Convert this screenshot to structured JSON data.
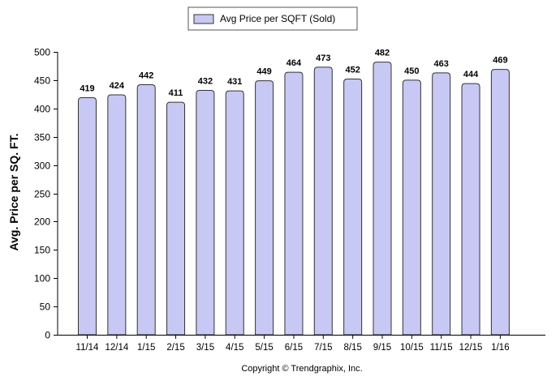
{
  "chart_data": {
    "type": "bar",
    "categories": [
      "11/14",
      "12/14",
      "1/15",
      "2/15",
      "3/15",
      "4/15",
      "5/15",
      "6/15",
      "7/15",
      "8/15",
      "9/15",
      "10/15",
      "11/15",
      "12/15",
      "1/16"
    ],
    "series": [
      {
        "name": "Avg Price per SQFT (Sold)",
        "values": [
          419,
          424,
          442,
          411,
          432,
          431,
          449,
          464,
          473,
          452,
          482,
          450,
          463,
          444,
          469
        ],
        "color": "#c8c8f5",
        "edge_color": "#333333"
      }
    ],
    "title": "",
    "xlabel": "",
    "ylabel": "Avg. Price per SQ. FT.",
    "ylim": [
      0,
      500
    ],
    "yticks": [
      0,
      50,
      100,
      150,
      200,
      250,
      300,
      350,
      400,
      450,
      500
    ],
    "grid": false,
    "legend": "top-center",
    "data_labels": true
  },
  "footer": {
    "copyright": "Copyright © Trendgraphix, Inc."
  }
}
